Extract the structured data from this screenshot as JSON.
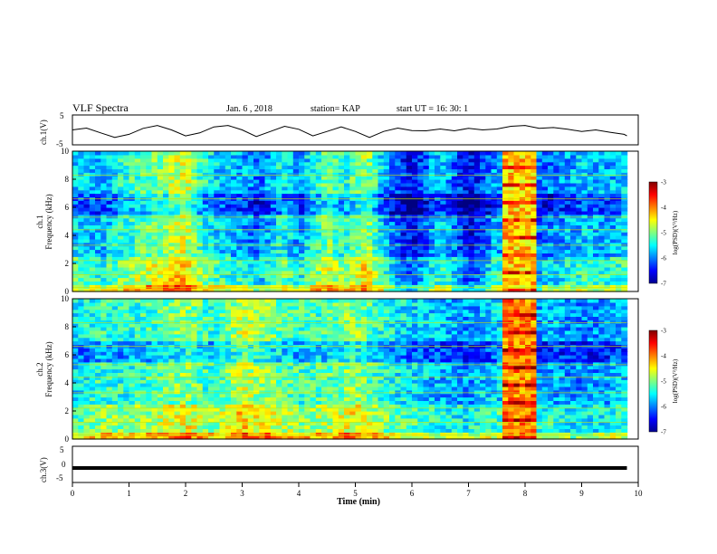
{
  "header": {
    "title": "VLF Spectra",
    "date": "Jan. 6 , 2018",
    "station": "station= KAP",
    "start": "start UT = 16: 30: 1"
  },
  "chart_data": [
    {
      "type": "line",
      "name": "ch1-waveform",
      "ylabel": "ch.1(V)",
      "ylim": [
        -5,
        5
      ],
      "yticks": [
        "5",
        "-5"
      ],
      "x": [
        0,
        0.25,
        0.5,
        0.75,
        1,
        1.25,
        1.5,
        1.75,
        2,
        2.25,
        2.5,
        2.75,
        3,
        3.25,
        3.5,
        3.75,
        4,
        4.25,
        4.5,
        4.75,
        5,
        5.25,
        5.5,
        5.75,
        6,
        6.25,
        6.5,
        6.75,
        7,
        7.25,
        7.5,
        7.75,
        8,
        8.25,
        8.5,
        8.75,
        9,
        9.25,
        9.5,
        9.75,
        9.8
      ],
      "y": [
        0,
        0.6,
        -1,
        -2.5,
        -1.5,
        0.5,
        1.5,
        0,
        -2,
        -1,
        1,
        1.5,
        0,
        -2.2,
        -0.5,
        1.2,
        0.2,
        -2,
        -0.5,
        1,
        -0.5,
        -2.5,
        -0.5,
        0.6,
        -0.2,
        -0.3,
        0.3,
        -0.3,
        0.5,
        0,
        0.3,
        1.2,
        1.5,
        0.5,
        0.8,
        0.2,
        -0.5,
        0,
        -0.8,
        -1.5,
        -2
      ]
    },
    {
      "type": "heatmap",
      "name": "ch1-spectrogram",
      "ylabel": "ch.1",
      "ylabel2": "Frequency (kHz)",
      "ylim": [
        0,
        10
      ],
      "yticks": [
        "0",
        "2",
        "4",
        "6",
        "8",
        "10"
      ],
      "xlim": [
        0,
        10
      ],
      "colorbar": {
        "range": [
          -7,
          -3
        ],
        "ticks": [
          "-3",
          "-4",
          "-5",
          "-6",
          "-7"
        ],
        "label": "log(PSD)(V²/Hz)"
      },
      "band_profile": [
        [
          0,
          -5.6
        ],
        [
          0.5,
          -5.8
        ],
        [
          1,
          -5.3
        ],
        [
          1.5,
          -5.0
        ],
        [
          2,
          -4.6
        ],
        [
          2.2,
          -5.2
        ],
        [
          2.5,
          -5.6
        ],
        [
          3,
          -5.8
        ],
        [
          3.3,
          -6.1
        ],
        [
          3.7,
          -5.4
        ],
        [
          4,
          -5.9
        ],
        [
          4.5,
          -5.0
        ],
        [
          4.8,
          -5.4
        ],
        [
          5.2,
          -4.8
        ],
        [
          5.5,
          -5.8
        ],
        [
          6,
          -6.6
        ],
        [
          6.5,
          -5.6
        ],
        [
          7,
          -6.6
        ],
        [
          7.5,
          -5.8
        ],
        [
          8,
          -6.2
        ],
        [
          8.5,
          -6.0
        ],
        [
          9,
          -5.7
        ],
        [
          9.5,
          -5.8
        ],
        [
          10,
          -5.5
        ]
      ],
      "burst": {
        "t_start": 7.65,
        "t_end": 8.15,
        "level": -4.3
      }
    },
    {
      "type": "heatmap",
      "name": "ch2-spectrogram",
      "ylabel": "ch.2",
      "ylabel2": "Frequency (kHz)",
      "ylim": [
        0,
        10
      ],
      "yticks": [
        "0",
        "2",
        "4",
        "6",
        "8",
        "10"
      ],
      "xlim": [
        0,
        10
      ],
      "colorbar": {
        "range": [
          -7,
          -3
        ],
        "ticks": [
          "-3",
          "-4",
          "-5",
          "-6",
          "-7"
        ],
        "label": "log(PSD)(V²/Hz)"
      },
      "band_profile": [
        [
          0,
          -5.6
        ],
        [
          0.5,
          -5.3
        ],
        [
          1,
          -5.4
        ],
        [
          1.5,
          -5.2
        ],
        [
          2,
          -4.9
        ],
        [
          2.5,
          -5.4
        ],
        [
          3,
          -4.7
        ],
        [
          3.5,
          -5.0
        ],
        [
          4,
          -5.3
        ],
        [
          4.5,
          -5.2
        ],
        [
          5,
          -4.9
        ],
        [
          5.5,
          -5.4
        ],
        [
          6,
          -5.6
        ],
        [
          6.5,
          -5.8
        ],
        [
          7,
          -5.9
        ],
        [
          7.5,
          -5.6
        ],
        [
          8,
          -5.9
        ],
        [
          8.5,
          -5.8
        ],
        [
          9,
          -6.0
        ],
        [
          9.5,
          -5.8
        ],
        [
          10,
          -5.6
        ]
      ],
      "burst": {
        "t_start": 7.65,
        "t_end": 8.15,
        "level": -4.0
      }
    },
    {
      "type": "line",
      "name": "ch3-waveform",
      "ylabel": "ch.3(V)",
      "ylim": [
        -5,
        5
      ],
      "yticks": [
        "5",
        "0",
        "-5"
      ],
      "x": [
        0,
        9.8
      ],
      "y": [
        -1,
        -1
      ]
    }
  ],
  "x_axis": {
    "label": "Time (min)",
    "ticks": [
      "0",
      "1",
      "2",
      "3",
      "4",
      "5",
      "6",
      "7",
      "8",
      "9",
      "10"
    ]
  }
}
